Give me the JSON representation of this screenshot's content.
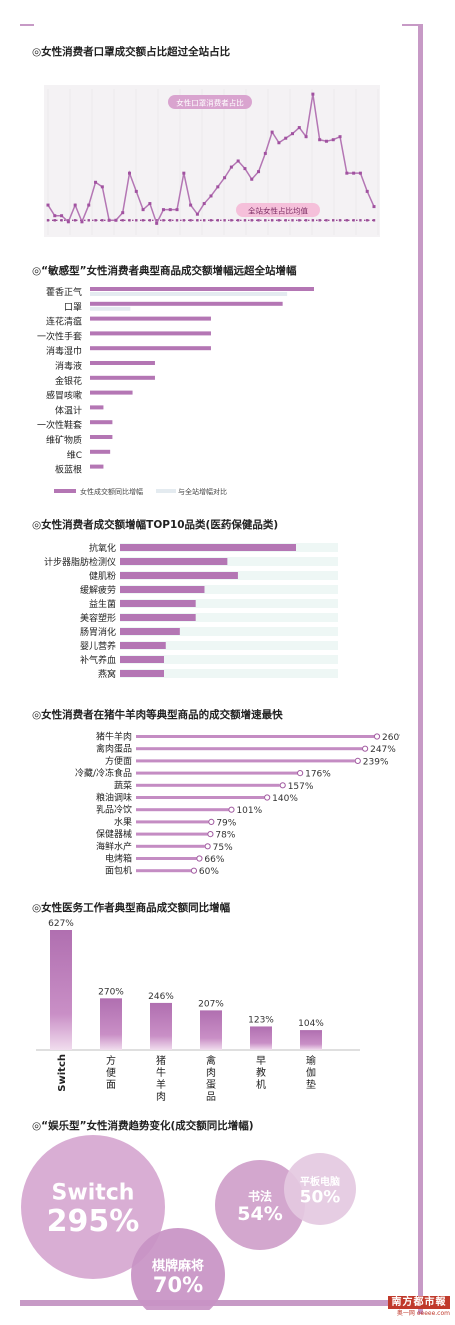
{
  "colors": {
    "accent": "#b476b4",
    "bar2": "#e4ebf0",
    "frame": "#c79ac6",
    "bgbar": "#eef7f5",
    "bubble": "#d3a5cf"
  },
  "sections": [
    "◎女性消费者口罩成交额占比超过全站占比",
    "◎“敏感型”女性消费者典型商品成交额增幅远超全站增幅",
    "◎女性消费者成交额增幅TOP10品类(医药保健品类)",
    "◎女性消费者在猪牛羊肉等典型商品的成交额增速最快",
    "◎女性医务工作者典型商品成交额同比增幅",
    "◎“娱乐型”女性消费趋势变化(成交额同比增幅)"
  ],
  "chart_data": [
    {
      "type": "line",
      "title": "◎女性消费者口罩成交额占比超过全站占比",
      "series": [
        {
          "name": "女性口罩消费者占比",
          "values": [
            42,
            28,
            28,
            20,
            42,
            20,
            42,
            72,
            66,
            22,
            22,
            32,
            84,
            60,
            36,
            44,
            18,
            36,
            36,
            36,
            84,
            42,
            30,
            44,
            54,
            66,
            78,
            92,
            100,
            90,
            76,
            86,
            110,
            138,
            124,
            130,
            136,
            144,
            132,
            188,
            128,
            126,
            128,
            132,
            84,
            84,
            84,
            60,
            40
          ]
        },
        {
          "name": "全站女性占比均值",
          "values": [
            22,
            22,
            22,
            22,
            22,
            22,
            22,
            22,
            22,
            22,
            22,
            22,
            22,
            22,
            22,
            22,
            22,
            22,
            22,
            22,
            22,
            22,
            22,
            22,
            22,
            22,
            22,
            22,
            22,
            22,
            22,
            22,
            22,
            22,
            22,
            22,
            22,
            22,
            22,
            22,
            22,
            22,
            22,
            22,
            22,
            22,
            22,
            22,
            22
          ]
        }
      ],
      "ylim": [
        0,
        200
      ]
    },
    {
      "type": "bar",
      "title": "◎“敏感型”女性消费者典型商品成交额增幅远超全站增幅",
      "categories": [
        "藿香正气",
        "口罩",
        "连花清瘟",
        "一次性手套",
        "消毒湿巾",
        "消毒液",
        "金银花",
        "感冒咳嗽",
        "体温计",
        "一次性鞋套",
        "维矿物质",
        "维C",
        "板蓝根"
      ],
      "series": [
        {
          "name": "女性成交额同比增幅",
          "values": [
            100,
            86,
            54,
            54,
            54,
            29,
            29,
            19,
            6,
            10,
            10,
            9,
            6
          ]
        },
        {
          "name": "与全站增幅对比",
          "values": [
            88,
            18,
            0,
            0,
            0,
            0,
            0,
            0,
            0,
            0,
            0,
            0,
            0
          ]
        }
      ]
    },
    {
      "type": "bar",
      "title": "◎女性消费者成交额增幅TOP10品类(医药保健品类)",
      "categories": [
        "抗氧化",
        "计步器脂肪检测仪",
        "健肌粉",
        "缓解疲劳",
        "益生菌",
        "美容塑形",
        "肠胃消化",
        "婴儿营养",
        "补气养血",
        "燕窝"
      ],
      "values": [
        100,
        61,
        67,
        48,
        43,
        43,
        34,
        26,
        25,
        25
      ]
    },
    {
      "type": "bar",
      "title": "◎女性消费者在猪牛羊肉等典型商品的成交额增速最快",
      "categories": [
        "猪牛羊肉",
        "禽肉蛋品",
        "方便面",
        "冷藏/冷冻食品",
        "蔬菜",
        "粮油调味",
        "乳品冷饮",
        "水果",
        "保健器械",
        "海鲜水产",
        "电烤箱",
        "面包机"
      ],
      "values": [
        260,
        247,
        239,
        176,
        157,
        140,
        101,
        79,
        78,
        75,
        66,
        60
      ],
      "value_labels": [
        "260%",
        "247%",
        "239%",
        "176%",
        "157%",
        "140%",
        "101%",
        "79%",
        "78%",
        "75%",
        "66%",
        "60%"
      ]
    },
    {
      "type": "bar",
      "title": "◎女性医务工作者典型商品成交额同比增幅",
      "categories": [
        "Switch",
        "方便面",
        "猪牛羊肉",
        "禽肉蛋品",
        "早教机",
        "瑜伽垫"
      ],
      "values": [
        627,
        270,
        246,
        207,
        123,
        104
      ],
      "value_labels": [
        "627%",
        "270%",
        "246%",
        "207%",
        "123%",
        "104%"
      ]
    },
    {
      "type": "bubble",
      "title": "◎“娱乐型”女性消费趋势变化(成交额同比增幅)",
      "categories": [
        "Switch",
        "棋牌麻将",
        "书法",
        "平板电脑"
      ],
      "values": [
        295,
        70,
        54,
        50
      ],
      "value_labels": [
        "295%",
        "70%",
        "54%",
        "50%"
      ]
    }
  ],
  "logo": {
    "line1": "南方都市報",
    "line2": "奥一网 oeeee.com"
  }
}
